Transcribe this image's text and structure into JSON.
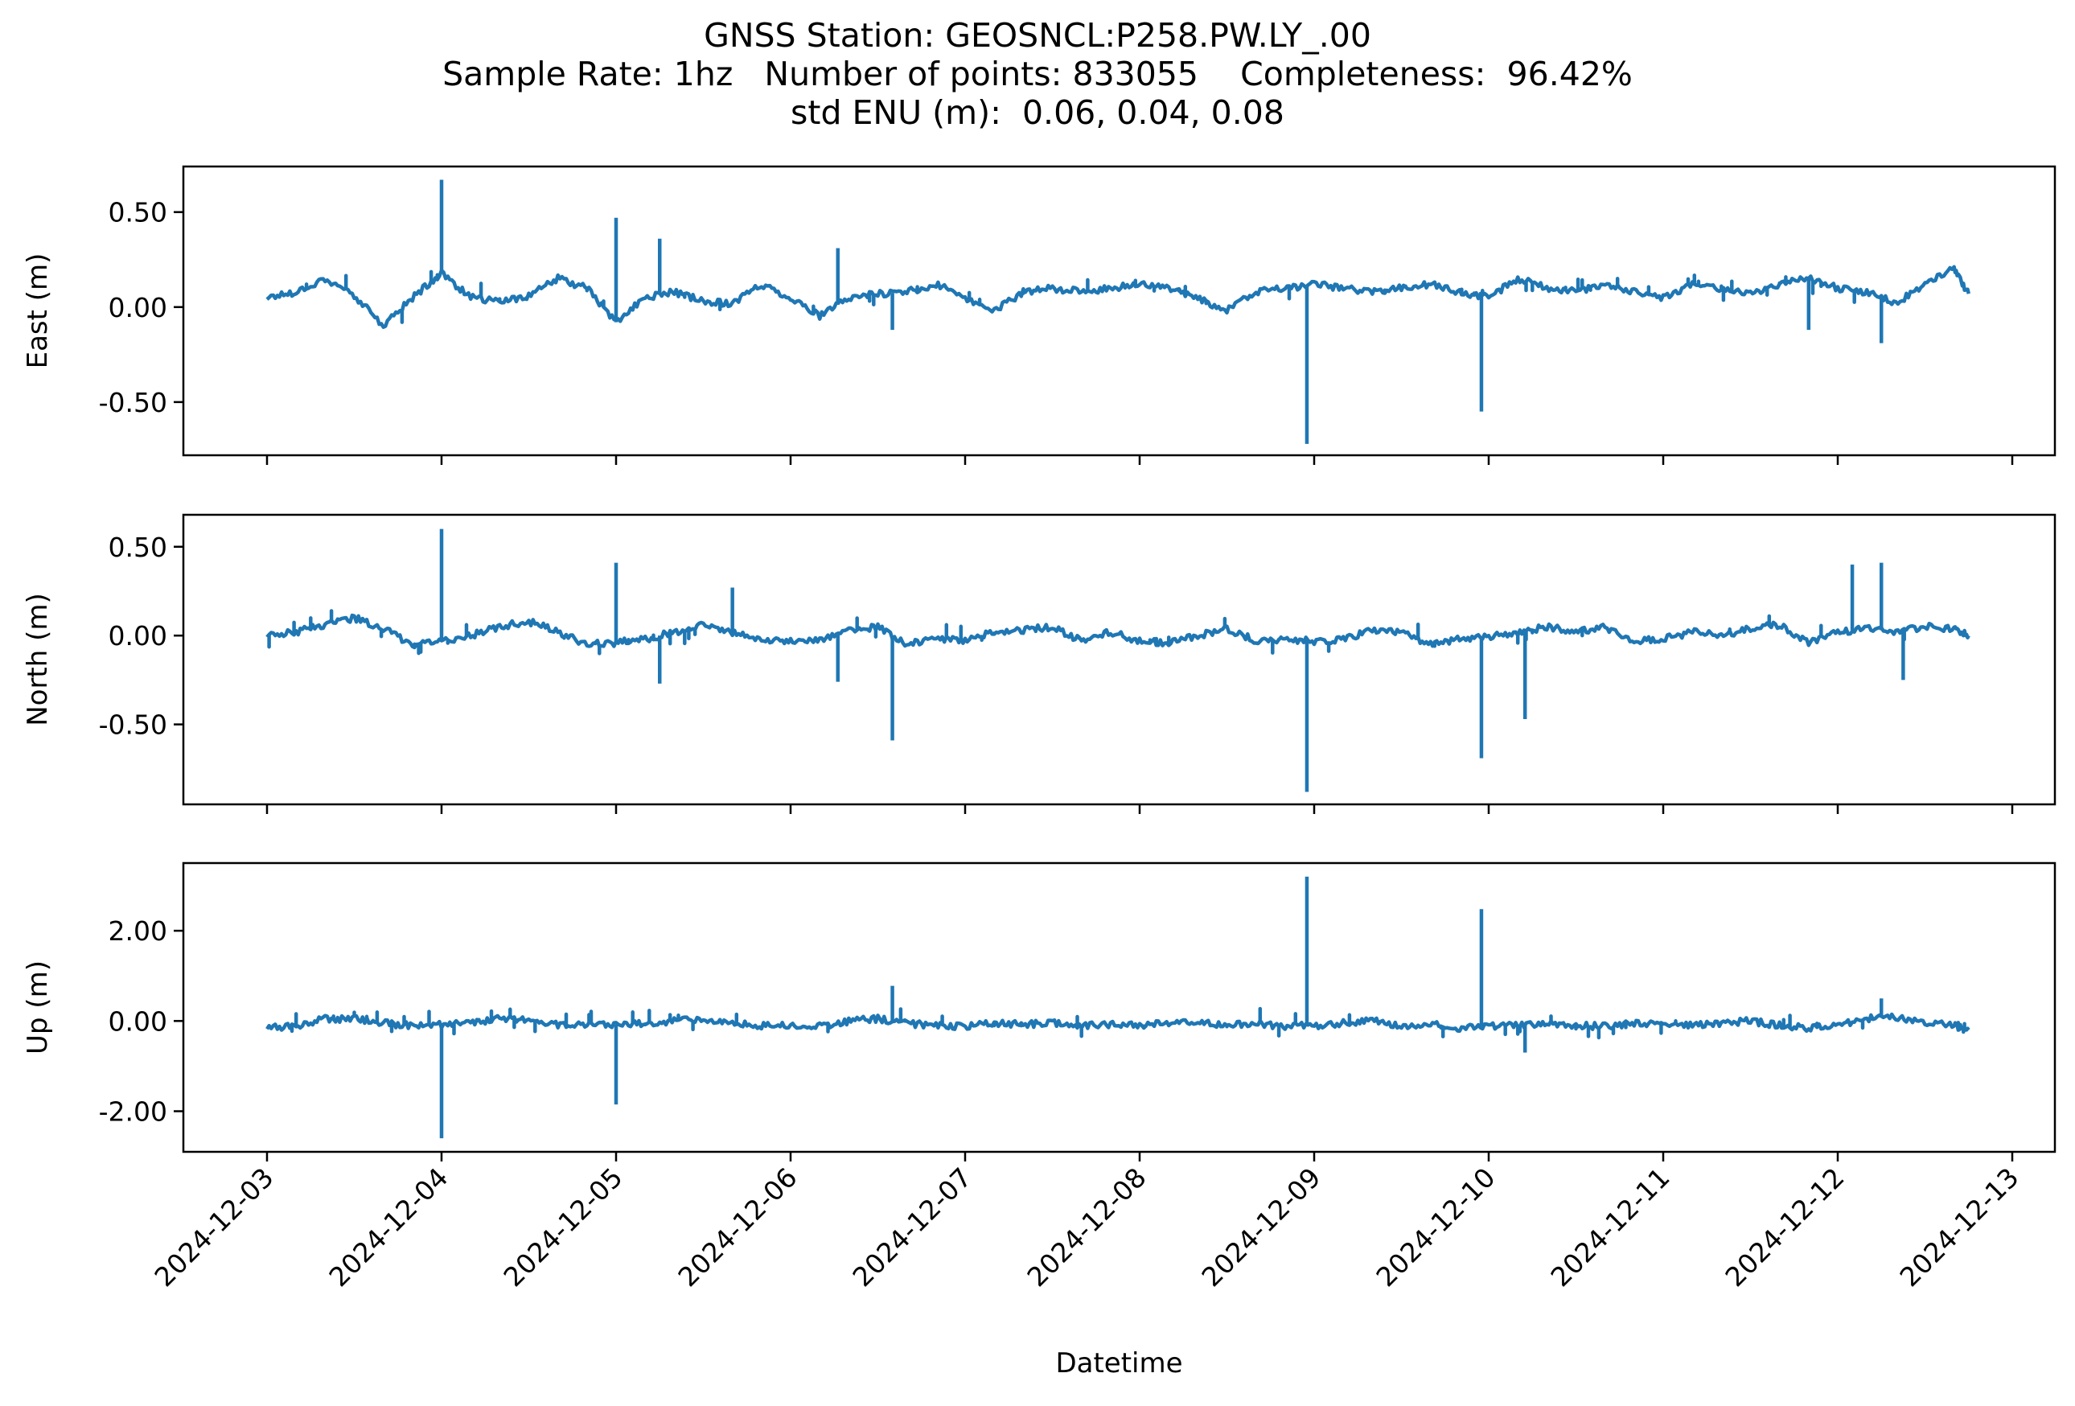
{
  "title": {
    "line1": "GNSS Station: GEOSNCL:P258.PW.LY_.00",
    "line2": "Sample Rate: 1hz   Number of points: 833055    Completeness:  96.42%",
    "line3": "std ENU (m):  0.06, 0.04, 0.08"
  },
  "colors": {
    "series": "#1f77b4",
    "axes": "#000000",
    "background": "#ffffff"
  },
  "chart_data": {
    "type": "line",
    "xlabel": "Datetime",
    "x_ticks": [
      "2024-12-03",
      "2024-12-04",
      "2024-12-05",
      "2024-12-06",
      "2024-12-07",
      "2024-12-08",
      "2024-12-09",
      "2024-12-10",
      "2024-12-11",
      "2024-12-12",
      "2024-12-13"
    ],
    "x_range": [
      "2024-12-03",
      "2024-12-12 18:00"
    ],
    "grid": false,
    "panels": [
      {
        "ylabel": "East (m)",
        "ylim": [
          -0.78,
          0.74
        ],
        "yticks": [
          0.5,
          0.0,
          -0.5
        ],
        "ytick_labels": [
          "0.50",
          "0.00",
          "-0.50"
        ],
        "series": {
          "x": [
            "2024-12-03 00:00",
            "2024-12-03 04:00",
            "2024-12-03 08:00",
            "2024-12-03 12:00",
            "2024-12-03 16:00",
            "2024-12-03 20:00",
            "2024-12-04 00:00",
            "2024-12-04 04:00",
            "2024-12-04 08:00",
            "2024-12-04 12:00",
            "2024-12-04 16:00",
            "2024-12-04 20:00",
            "2024-12-05 00:00",
            "2024-12-05 04:00",
            "2024-12-05 08:00",
            "2024-12-05 12:00",
            "2024-12-05 16:00",
            "2024-12-05 20:00",
            "2024-12-06 00:00",
            "2024-12-06 04:00",
            "2024-12-06 08:00",
            "2024-12-06 12:00",
            "2024-12-06 16:00",
            "2024-12-06 20:00",
            "2024-12-07 00:00",
            "2024-12-07 04:00",
            "2024-12-07 08:00",
            "2024-12-07 12:00",
            "2024-12-07 16:00",
            "2024-12-07 20:00",
            "2024-12-08 00:00",
            "2024-12-08 04:00",
            "2024-12-08 08:00",
            "2024-12-08 12:00",
            "2024-12-08 16:00",
            "2024-12-08 20:00",
            "2024-12-09 00:00",
            "2024-12-09 04:00",
            "2024-12-09 08:00",
            "2024-12-09 12:00",
            "2024-12-09 16:00",
            "2024-12-09 20:00",
            "2024-12-10 00:00",
            "2024-12-10 04:00",
            "2024-12-10 08:00",
            "2024-12-10 12:00",
            "2024-12-10 16:00",
            "2024-12-10 20:00",
            "2024-12-11 00:00",
            "2024-12-11 04:00",
            "2024-12-11 08:00",
            "2024-12-11 12:00",
            "2024-12-11 16:00",
            "2024-12-11 20:00",
            "2024-12-12 00:00",
            "2024-12-12 04:00",
            "2024-12-12 08:00",
            "2024-12-12 12:00",
            "2024-12-12 16:00",
            "2024-12-12 18:00"
          ],
          "y": [
            0.05,
            0.08,
            0.15,
            0.06,
            -0.1,
            0.05,
            0.18,
            0.05,
            0.03,
            0.06,
            0.15,
            0.1,
            -0.08,
            0.05,
            0.08,
            0.03,
            0.02,
            0.12,
            0.05,
            -0.05,
            0.05,
            0.07,
            0.08,
            0.12,
            0.05,
            -0.02,
            0.08,
            0.1,
            0.08,
            0.1,
            0.12,
            0.1,
            0.05,
            -0.02,
            0.08,
            0.1,
            0.12,
            0.1,
            0.08,
            0.1,
            0.12,
            0.08,
            0.05,
            0.15,
            0.1,
            0.08,
            0.12,
            0.08,
            0.05,
            0.12,
            0.1,
            0.07,
            0.12,
            0.15,
            0.1,
            0.08,
            0.02,
            0.12,
            0.2,
            0.07
          ],
          "spikes": [
            {
              "x": "2024-12-04 00:00",
              "y": 0.67
            },
            {
              "x": "2024-12-05 00:00",
              "y": 0.47
            },
            {
              "x": "2024-12-05 06:00",
              "y": 0.36
            },
            {
              "x": "2024-12-06 06:30",
              "y": 0.31
            },
            {
              "x": "2024-12-06 14:00",
              "y": -0.12
            },
            {
              "x": "2024-12-08 23:00",
              "y": -0.72
            },
            {
              "x": "2024-12-09 23:00",
              "y": -0.55
            },
            {
              "x": "2024-12-11 20:00",
              "y": -0.12
            },
            {
              "x": "2024-12-12 06:00",
              "y": -0.19
            }
          ]
        }
      },
      {
        "ylabel": "North (m)",
        "ylim": [
          -0.95,
          0.68
        ],
        "yticks": [
          0.5,
          0.0,
          -0.5
        ],
        "ytick_labels": [
          "0.50",
          "0.00",
          "-0.50"
        ],
        "series": {
          "x": [
            "2024-12-03 00:00",
            "2024-12-03 04:00",
            "2024-12-03 08:00",
            "2024-12-03 12:00",
            "2024-12-03 16:00",
            "2024-12-03 20:00",
            "2024-12-04 00:00",
            "2024-12-04 04:00",
            "2024-12-04 08:00",
            "2024-12-04 12:00",
            "2024-12-04 16:00",
            "2024-12-04 20:00",
            "2024-12-05 00:00",
            "2024-12-05 04:00",
            "2024-12-05 08:00",
            "2024-12-05 12:00",
            "2024-12-05 16:00",
            "2024-12-05 20:00",
            "2024-12-06 00:00",
            "2024-12-06 04:00",
            "2024-12-06 08:00",
            "2024-12-06 12:00",
            "2024-12-06 16:00",
            "2024-12-06 20:00",
            "2024-12-07 00:00",
            "2024-12-07 04:00",
            "2024-12-07 08:00",
            "2024-12-07 12:00",
            "2024-12-07 16:00",
            "2024-12-07 20:00",
            "2024-12-08 00:00",
            "2024-12-08 04:00",
            "2024-12-08 08:00",
            "2024-12-08 12:00",
            "2024-12-08 16:00",
            "2024-12-08 20:00",
            "2024-12-09 00:00",
            "2024-12-09 04:00",
            "2024-12-09 08:00",
            "2024-12-09 12:00",
            "2024-12-09 16:00",
            "2024-12-09 20:00",
            "2024-12-10 00:00",
            "2024-12-10 04:00",
            "2024-12-10 08:00",
            "2024-12-10 12:00",
            "2024-12-10 16:00",
            "2024-12-10 20:00",
            "2024-12-11 00:00",
            "2024-12-11 04:00",
            "2024-12-11 08:00",
            "2024-12-11 12:00",
            "2024-12-11 16:00",
            "2024-12-11 20:00",
            "2024-12-12 00:00",
            "2024-12-12 04:00",
            "2024-12-12 08:00",
            "2024-12-12 12:00",
            "2024-12-12 16:00",
            "2024-12-12 18:00"
          ],
          "y": [
            0.0,
            0.02,
            0.06,
            0.1,
            0.04,
            -0.05,
            -0.03,
            0.0,
            0.05,
            0.08,
            0.02,
            -0.05,
            -0.04,
            -0.02,
            0.02,
            0.06,
            0.02,
            -0.03,
            -0.03,
            -0.02,
            0.03,
            0.05,
            -0.05,
            -0.02,
            -0.03,
            0.02,
            0.03,
            0.05,
            -0.03,
            0.02,
            -0.03,
            -0.04,
            0.0,
            0.04,
            -0.03,
            -0.02,
            -0.03,
            -0.02,
            0.03,
            0.02,
            -0.05,
            -0.02,
            -0.01,
            0.02,
            0.05,
            0.02,
            0.05,
            -0.03,
            -0.02,
            0.02,
            0.0,
            0.04,
            0.06,
            -0.04,
            0.02,
            0.04,
            0.02,
            0.05,
            0.04,
            0.0
          ],
          "spikes": [
            {
              "x": "2024-12-04 00:00",
              "y": 0.6
            },
            {
              "x": "2024-12-05 00:00",
              "y": 0.41
            },
            {
              "x": "2024-12-05 06:00",
              "y": -0.27
            },
            {
              "x": "2024-12-05 16:00",
              "y": 0.27
            },
            {
              "x": "2024-12-06 06:30",
              "y": -0.26
            },
            {
              "x": "2024-12-06 14:00",
              "y": -0.59
            },
            {
              "x": "2024-12-08 23:00",
              "y": -0.88
            },
            {
              "x": "2024-12-09 23:00",
              "y": -0.69
            },
            {
              "x": "2024-12-10 05:00",
              "y": -0.47
            },
            {
              "x": "2024-12-12 02:00",
              "y": 0.4
            },
            {
              "x": "2024-12-12 06:00",
              "y": 0.41
            },
            {
              "x": "2024-12-12 09:00",
              "y": -0.25
            }
          ]
        }
      },
      {
        "ylabel": "Up (m)",
        "ylim": [
          -2.9,
          3.5
        ],
        "yticks": [
          2.0,
          0.0,
          -2.0
        ],
        "ytick_labels": [
          "2.00",
          "0.00",
          "-2.00"
        ],
        "series": {
          "x": [
            "2024-12-03 00:00",
            "2024-12-03 04:00",
            "2024-12-03 08:00",
            "2024-12-03 12:00",
            "2024-12-03 16:00",
            "2024-12-03 20:00",
            "2024-12-04 00:00",
            "2024-12-04 04:00",
            "2024-12-04 08:00",
            "2024-12-04 12:00",
            "2024-12-04 16:00",
            "2024-12-04 20:00",
            "2024-12-05 00:00",
            "2024-12-05 04:00",
            "2024-12-05 08:00",
            "2024-12-05 12:00",
            "2024-12-05 16:00",
            "2024-12-05 20:00",
            "2024-12-06 00:00",
            "2024-12-06 04:00",
            "2024-12-06 08:00",
            "2024-12-06 12:00",
            "2024-12-06 16:00",
            "2024-12-06 20:00",
            "2024-12-07 00:00",
            "2024-12-07 04:00",
            "2024-12-07 08:00",
            "2024-12-07 12:00",
            "2024-12-07 16:00",
            "2024-12-07 20:00",
            "2024-12-08 00:00",
            "2024-12-08 04:00",
            "2024-12-08 08:00",
            "2024-12-08 12:00",
            "2024-12-08 16:00",
            "2024-12-08 20:00",
            "2024-12-09 00:00",
            "2024-12-09 04:00",
            "2024-12-09 08:00",
            "2024-12-09 12:00",
            "2024-12-09 16:00",
            "2024-12-09 20:00",
            "2024-12-10 00:00",
            "2024-12-10 04:00",
            "2024-12-10 08:00",
            "2024-12-10 12:00",
            "2024-12-10 16:00",
            "2024-12-10 20:00",
            "2024-12-11 00:00",
            "2024-12-11 04:00",
            "2024-12-11 08:00",
            "2024-12-11 12:00",
            "2024-12-11 16:00",
            "2024-12-11 20:00",
            "2024-12-12 00:00",
            "2024-12-12 04:00",
            "2024-12-12 08:00",
            "2024-12-12 12:00",
            "2024-12-12 16:00",
            "2024-12-12 18:00"
          ],
          "y": [
            -0.15,
            -0.1,
            0.05,
            0.05,
            -0.05,
            -0.1,
            -0.08,
            -0.05,
            0.05,
            0.05,
            -0.08,
            -0.1,
            -0.08,
            -0.05,
            0.0,
            0.05,
            -0.05,
            -0.1,
            -0.1,
            -0.12,
            0.0,
            0.05,
            -0.05,
            -0.1,
            -0.12,
            -0.05,
            -0.08,
            -0.05,
            -0.1,
            -0.08,
            -0.1,
            -0.05,
            0.0,
            -0.1,
            -0.05,
            -0.12,
            -0.1,
            -0.05,
            0.0,
            -0.1,
            -0.05,
            -0.15,
            -0.12,
            -0.08,
            -0.05,
            -0.1,
            -0.12,
            -0.05,
            -0.1,
            -0.08,
            -0.05,
            0.0,
            -0.1,
            -0.15,
            -0.1,
            0.05,
            0.1,
            -0.05,
            -0.1,
            -0.2
          ],
          "spikes": [
            {
              "x": "2024-12-04 00:00",
              "y": -2.6
            },
            {
              "x": "2024-12-05 00:00",
              "y": -1.85
            },
            {
              "x": "2024-12-06 14:00",
              "y": 0.78
            },
            {
              "x": "2024-12-08 23:00",
              "y": 3.2
            },
            {
              "x": "2024-12-09 23:00",
              "y": 2.48
            },
            {
              "x": "2024-12-10 05:00",
              "y": -0.7
            },
            {
              "x": "2024-12-12 06:00",
              "y": 0.5
            }
          ]
        }
      }
    ]
  }
}
